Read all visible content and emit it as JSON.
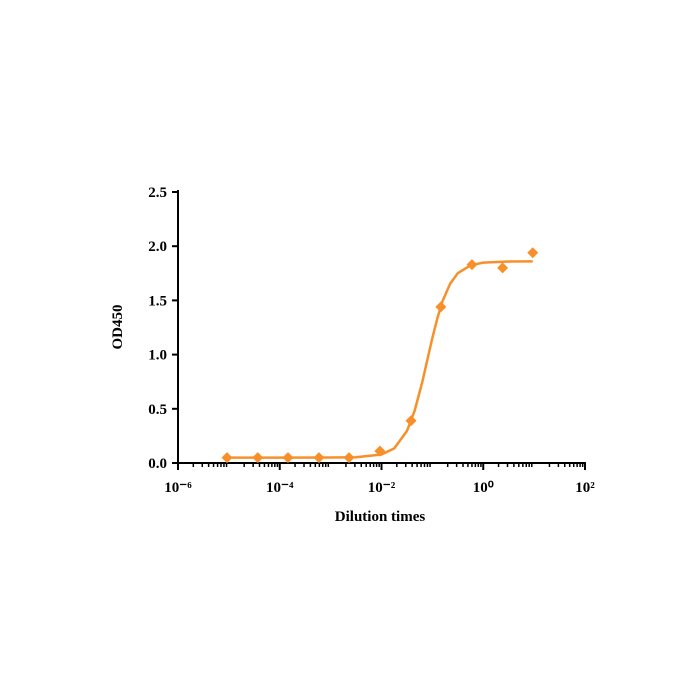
{
  "chart_data": {
    "type": "scatter",
    "x_label": "Dilution times",
    "y_label": "OD450",
    "log_x": true,
    "xlim": [
      1e-06,
      100
    ],
    "xticks": [
      {
        "value": 1e-06,
        "label": "10⁻⁶"
      },
      {
        "value": 0.0001,
        "label": "10⁻⁴"
      },
      {
        "value": 0.01,
        "label": "10⁻²"
      },
      {
        "value": 1,
        "label": "10⁰"
      },
      {
        "value": 100,
        "label": "10²"
      }
    ],
    "ylim": [
      0,
      2.5
    ],
    "yticks": [
      {
        "value": 0,
        "label": "0.0"
      },
      0.5,
      {
        "value": 1,
        "label": "1.0"
      },
      1.5,
      {
        "value": 2,
        "label": "2.0"
      },
      2.5
    ],
    "points": {
      "color": "#f7902a",
      "x": [
        9.2e-06,
        3.7e-05,
        0.000145,
        0.00059,
        0.0023,
        0.0093,
        0.038,
        0.147,
        0.6,
        2.4,
        9.4
      ],
      "values": [
        0.05,
        0.05,
        0.05,
        0.05,
        0.05,
        0.11,
        0.39,
        1.44,
        1.83,
        1.8,
        1.94
      ]
    },
    "curve": {
      "color": "#f7902a",
      "x": [
        9.2e-06,
        0.0001,
        0.001,
        0.00316,
        0.01,
        0.0178,
        0.0316,
        0.0447,
        0.0631,
        0.0794,
        0.1,
        0.126,
        0.158,
        0.224,
        0.316,
        0.562,
        1,
        3.16,
        9.4
      ],
      "values": [
        0.05,
        0.05,
        0.0503,
        0.0528,
        0.078,
        0.135,
        0.295,
        0.48,
        0.744,
        0.949,
        1.154,
        1.339,
        1.492,
        1.655,
        1.751,
        1.824,
        1.848,
        1.859,
        1.86
      ]
    }
  }
}
